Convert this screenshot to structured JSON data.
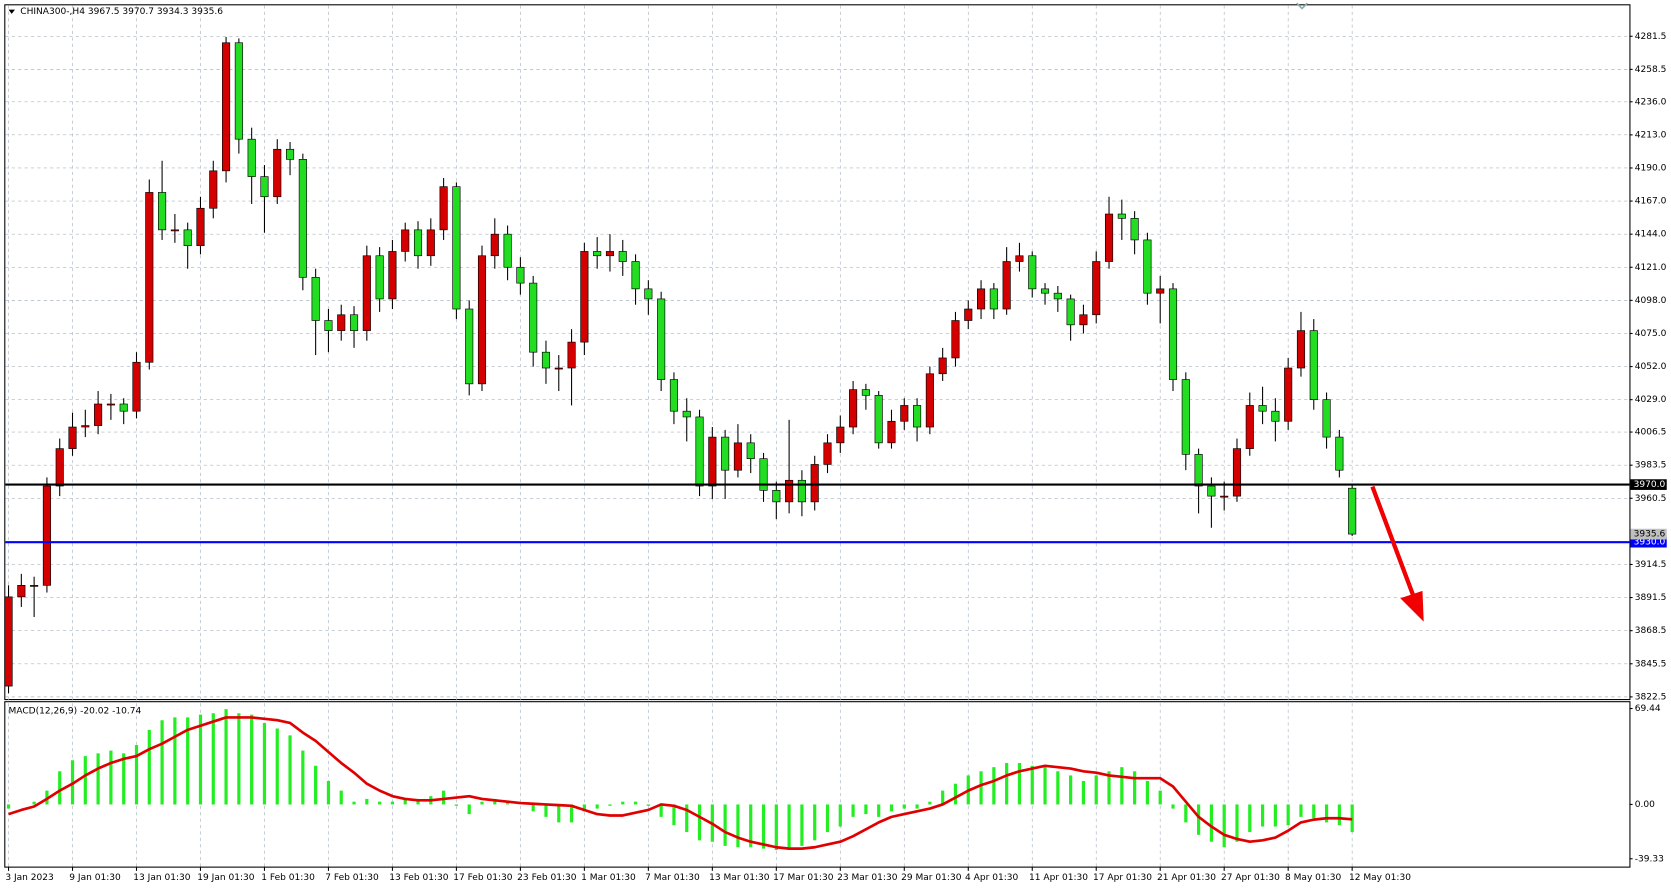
{
  "chart_data": [
    {
      "type": "candlestick",
      "title": "CHINA300-,H4  3967.5 3970.7 3934.3 3935.6",
      "categories": [
        "3 Jan 2023",
        null,
        null,
        null,
        null,
        "9 Jan 01:30",
        null,
        null,
        null,
        null,
        "13 Jan 01:30",
        null,
        null,
        null,
        null,
        "19 Jan 01:30",
        null,
        null,
        null,
        null,
        "1 Feb 01:30",
        null,
        null,
        null,
        null,
        "7 Feb 01:30",
        null,
        null,
        null,
        null,
        "13 Feb 01:30",
        null,
        null,
        null,
        null,
        "17 Feb 01:30",
        null,
        null,
        null,
        null,
        "23 Feb 01:30",
        null,
        null,
        null,
        null,
        "1 Mar 01:30",
        null,
        null,
        null,
        null,
        "7 Mar 01:30",
        null,
        null,
        null,
        null,
        "13 Mar 01:30",
        null,
        null,
        null,
        null,
        "17 Mar 01:30",
        null,
        null,
        null,
        null,
        "23 Mar 01:30",
        null,
        null,
        null,
        null,
        "29 Mar 01:30",
        null,
        null,
        null,
        null,
        "4 Apr 01:30",
        null,
        null,
        null,
        null,
        "11 Apr 01:30",
        null,
        null,
        null,
        null,
        "17 Apr 01:30",
        null,
        null,
        null,
        null,
        "21 Apr 01:30",
        null,
        null,
        null,
        null,
        "27 Apr 01:30",
        null,
        null,
        null,
        null,
        "8 May 01:30",
        null,
        null,
        null,
        null,
        "12 May 01:30"
      ],
      "open": [
        3830,
        3892,
        3900,
        3900,
        3969,
        3995,
        4010,
        4011,
        4026,
        4026,
        4021,
        4055,
        4173,
        4147,
        4147,
        4136,
        4162,
        4188,
        4277,
        4210,
        4184,
        4170,
        4203,
        4196,
        4114,
        4084,
        4077,
        4088,
        4077,
        4129,
        4099,
        4132,
        4147,
        4129,
        4147,
        4177,
        4092,
        4040,
        4129,
        4144,
        4121,
        4110,
        4062,
        4051,
        4051,
        4069,
        4132,
        4129,
        4132,
        4125,
        4106,
        4099,
        4043,
        4021,
        4017,
        3969,
        4003,
        3980,
        3999,
        3988,
        3966,
        3958,
        3973,
        3958,
        3984,
        3999,
        4010,
        4036,
        4032,
        3999,
        4014,
        4025,
        4010,
        4047,
        4058,
        4084,
        4092,
        4106,
        4092,
        4125,
        4129,
        4106,
        4103,
        4099,
        4081,
        4088,
        4125,
        4158,
        4155,
        4140,
        4103,
        4106,
        4043,
        3991,
        3969,
        3962,
        3962,
        3995,
        4025,
        4021,
        4014,
        4051,
        4077,
        4029,
        4003,
        3967.5
      ],
      "high": [
        3900,
        3908,
        3906,
        3975,
        4002,
        4020,
        4022,
        4035,
        4033,
        4030,
        4062,
        4182,
        4195,
        4158,
        4152,
        4170,
        4195,
        4281,
        4280,
        4218,
        4192,
        4210,
        4208,
        4200,
        4120,
        4092,
        4095,
        4094,
        4136,
        4135,
        4140,
        4152,
        4153,
        4155,
        4183,
        4180,
        4098,
        4136,
        4155,
        4150,
        4128,
        4115,
        4070,
        4060,
        4078,
        4138,
        4142,
        4144,
        4140,
        4130,
        4112,
        4104,
        4048,
        4030,
        4022,
        4010,
        4008,
        4012,
        4005,
        3992,
        3972,
        4015,
        3980,
        3990,
        4005,
        4018,
        4042,
        4040,
        4035,
        4022,
        4030,
        4030,
        4052,
        4065,
        4090,
        4098,
        4112,
        4110,
        4135,
        4138,
        4132,
        4110,
        4108,
        4102,
        4095,
        4132,
        4170,
        4168,
        4160,
        4145,
        4115,
        4110,
        4048,
        3995,
        3975,
        3972,
        4002,
        4034,
        4038,
        4030,
        4058,
        4090,
        4085,
        4034,
        4008,
        3970.7
      ],
      "low": [
        3825,
        3885,
        3878,
        3895,
        3962,
        3990,
        4003,
        4005,
        4015,
        4012,
        4016,
        4050,
        4140,
        4138,
        4120,
        4130,
        4155,
        4180,
        4200,
        4165,
        4145,
        4165,
        4185,
        4105,
        4060,
        4062,
        4070,
        4065,
        4070,
        4090,
        4092,
        4125,
        4120,
        4122,
        4140,
        4085,
        4032,
        4035,
        4120,
        4112,
        4102,
        4052,
        4040,
        4035,
        4025,
        4060,
        4120,
        4118,
        4115,
        4095,
        4088,
        4035,
        4012,
        4000,
        3962,
        3960,
        3960,
        3975,
        3978,
        3958,
        3946,
        3950,
        3948,
        3952,
        3978,
        3992,
        4005,
        4022,
        3995,
        3995,
        4008,
        4000,
        4005,
        4042,
        4052,
        4078,
        4085,
        4085,
        4088,
        4118,
        4100,
        4095,
        4090,
        4070,
        4075,
        4082,
        4120,
        4140,
        4130,
        4095,
        4082,
        4035,
        3980,
        3950,
        3940,
        3952,
        3958,
        3990,
        4012,
        4000,
        4008,
        4045,
        4022,
        3995,
        3975,
        3934.3
      ],
      "close": [
        3892,
        3900,
        3900,
        3969,
        3995,
        4010,
        4011,
        4026,
        4026,
        4021,
        4055,
        4173,
        4147,
        4147,
        4136,
        4162,
        4188,
        4277,
        4210,
        4184,
        4170,
        4203,
        4196,
        4114,
        4084,
        4077,
        4088,
        4077,
        4129,
        4099,
        4132,
        4147,
        4129,
        4147,
        4177,
        4092,
        4040,
        4129,
        4144,
        4121,
        4110,
        4062,
        4051,
        4051,
        4069,
        4132,
        4129,
        4132,
        4125,
        4106,
        4099,
        4043,
        4021,
        4017,
        3969,
        4003,
        3980,
        3999,
        3988,
        3966,
        3958,
        3973,
        3958,
        3984,
        3999,
        4010,
        4036,
        4032,
        3999,
        4014,
        4025,
        4010,
        4047,
        4058,
        4084,
        4092,
        4106,
        4092,
        4125,
        4129,
        4106,
        4103,
        4099,
        4081,
        4088,
        4125,
        4158,
        4155,
        4140,
        4103,
        4106,
        4043,
        3991,
        3969,
        3962,
        3962,
        3995,
        4025,
        4021,
        4014,
        4051,
        4077,
        4029,
        4003,
        3980,
        3935.6
      ],
      "up_color": "#d40000",
      "down_color": "#22dd22",
      "ylim": [
        3821,
        4303
      ],
      "yticks": [
        {
          "value": 4281.5,
          "label": "4281.5"
        },
        {
          "value": 4258.5,
          "label": "4258.5"
        },
        {
          "value": 4236,
          "label": "4236.0"
        },
        {
          "value": 4213,
          "label": "4213.0"
        },
        {
          "value": 4190,
          "label": "4190.0"
        },
        {
          "value": 4167,
          "label": "4167.0"
        },
        {
          "value": 4144,
          "label": "4144.0"
        },
        {
          "value": 4121,
          "label": "4121.0"
        },
        {
          "value": 4098,
          "label": "4098.0"
        },
        {
          "value": 4075,
          "label": "4075.0"
        },
        {
          "value": 4052,
          "label": "4052.0"
        },
        {
          "value": 4029,
          "label": "4029.0"
        },
        {
          "value": 4006.5,
          "label": "4006.5"
        },
        {
          "value": 3983.5,
          "label": "3983.5"
        },
        {
          "value": 3960.5,
          "label": "3960.5"
        },
        {
          "value": 3914.5,
          "label": "3914.5"
        },
        {
          "value": 3891.5,
          "label": "3891.5"
        },
        {
          "value": 3868.5,
          "label": "3868.5"
        },
        {
          "value": 3845.5,
          "label": "3845.5"
        },
        {
          "value": 3822.5,
          "label": "3822.5"
        }
      ],
      "levels": [
        {
          "value": 3970,
          "label": "3970.0",
          "color": "#000000"
        },
        {
          "value": 3930,
          "label": "3930.0",
          "color": "#0000ff"
        }
      ],
      "last_price": 3935.6,
      "grid": true
    },
    {
      "type": "macd",
      "title": "MACD(12,26,9) -20.02 -10.74",
      "histogram": {
        "color": "#22ee22",
        "values": [
          -3,
          0,
          2,
          10,
          24,
          32,
          35,
          37,
          39,
          37,
          43,
          54,
          61,
          63,
          63,
          65,
          66,
          69,
          66,
          65,
          59,
          55,
          50,
          39,
          28,
          17,
          10,
          2,
          4,
          2,
          2,
          4,
          4,
          6,
          10,
          -1,
          -7,
          2,
          4,
          1,
          0,
          -5,
          -9,
          -13,
          -13,
          -5,
          -3,
          -1,
          2,
          2,
          -1,
          -9,
          -15,
          -20,
          -26,
          -27,
          -30,
          -31,
          -31,
          -32,
          -33,
          -31,
          -30,
          -26,
          -20,
          -16,
          -9,
          -7,
          -9,
          -5,
          -3,
          -3,
          2,
          10,
          15,
          21,
          24,
          27,
          30,
          30,
          28,
          27,
          24,
          21,
          17,
          21,
          24,
          27,
          24,
          17,
          10,
          -3,
          -13,
          -22,
          -27,
          -31,
          -27,
          -20,
          -16,
          -16,
          -15,
          -9,
          -10,
          -13,
          -15,
          -20.02
        ]
      },
      "signal": {
        "color": "#e00000",
        "values": [
          -7,
          -4,
          -1.5,
          4,
          10,
          15,
          21,
          26,
          30,
          33,
          35,
          40,
          44,
          49,
          54,
          57,
          60,
          63,
          63,
          63,
          62,
          61,
          59,
          52,
          46,
          38,
          30,
          23,
          15,
          10,
          6,
          4,
          3,
          3,
          4,
          5,
          6,
          4,
          3,
          2,
          1,
          0.5,
          0,
          -0.5,
          -1,
          -4,
          -7,
          -8,
          -8,
          -6,
          -4,
          0,
          -1,
          -4,
          -9,
          -14,
          -20,
          -24,
          -27,
          -29,
          -31,
          -32,
          -32,
          -31,
          -29,
          -27,
          -23,
          -18,
          -13,
          -9,
          -7,
          -5,
          -3,
          0,
          5,
          10,
          14,
          17,
          21,
          24,
          26,
          28,
          27,
          26,
          24,
          23,
          21,
          20,
          19,
          19,
          19,
          13,
          2,
          -9,
          -16,
          -22,
          -25,
          -27,
          -26,
          -24,
          -19,
          -13,
          -11,
          -10,
          -10,
          -10.74
        ]
      },
      "ylim": [
        -45,
        74
      ],
      "yticks": [
        69.44,
        {
          "value": 0,
          "label": "0.00"
        },
        -39.33
      ]
    }
  ]
}
